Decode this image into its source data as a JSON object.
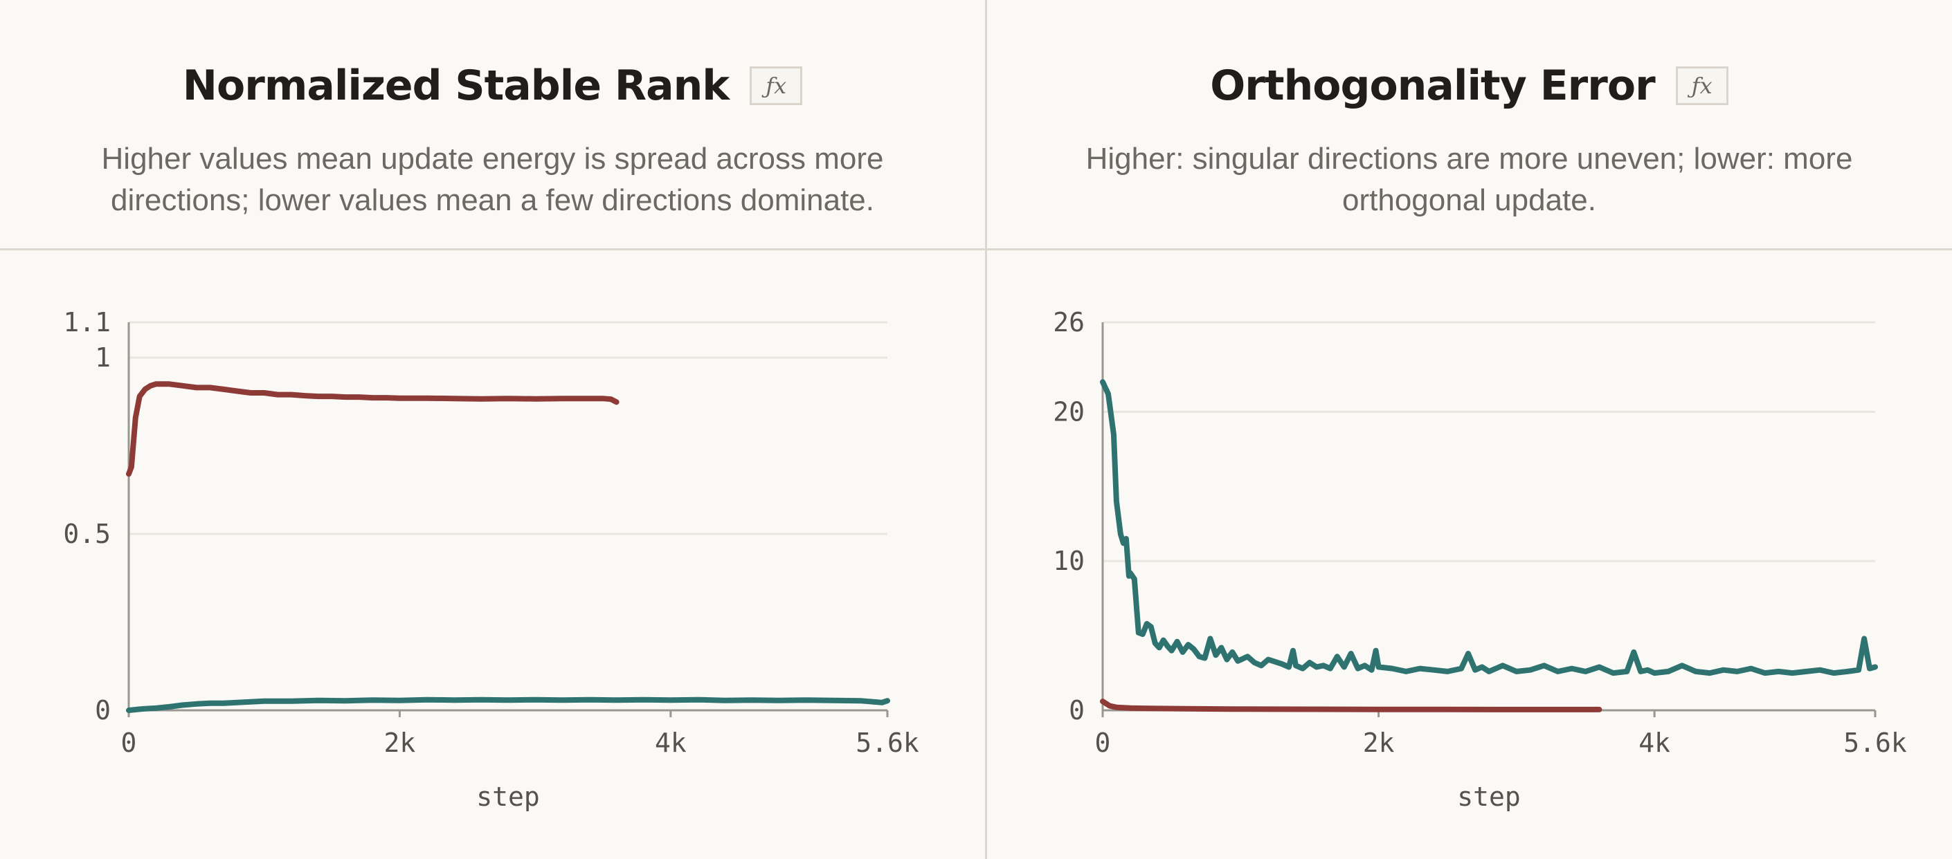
{
  "panels": [
    {
      "title": "Normalized Stable Rank",
      "fx_label": "ƒx",
      "subtitle": "Higher values mean update energy is spread across more directions; lower values mean a few directions dominate."
    },
    {
      "title": "Orthogonality Error",
      "fx_label": "ƒx",
      "subtitle": "Higher: singular directions are more uneven; lower: more orthogonal update."
    }
  ],
  "colors": {
    "series_red": "#8e3a36",
    "series_teal": "#2f7370",
    "grid": "#e9e6e0",
    "axis": "#9a9690"
  },
  "chart_data": [
    {
      "type": "line",
      "xlabel": "step",
      "xlim": [
        0,
        5600
      ],
      "ylim": [
        0,
        1.1
      ],
      "xticks": [
        {
          "v": 0,
          "label": "0"
        },
        {
          "v": 2000,
          "label": "2k"
        },
        {
          "v": 4000,
          "label": "4k"
        },
        {
          "v": 5600,
          "label": "5.6k"
        }
      ],
      "yticks": [
        {
          "v": 0,
          "label": "0"
        },
        {
          "v": 0.5,
          "label": "0.5"
        },
        {
          "v": 1,
          "label": "1"
        },
        {
          "v": 1.1,
          "label": "1.1"
        }
      ],
      "series": [
        {
          "color": "series_red",
          "x": [
            0,
            20,
            50,
            80,
            120,
            160,
            200,
            300,
            400,
            500,
            600,
            700,
            800,
            900,
            1000,
            1100,
            1200,
            1300,
            1400,
            1500,
            1600,
            1700,
            1800,
            1900,
            2000,
            2200,
            2400,
            2600,
            2800,
            3000,
            3200,
            3400,
            3500,
            3560,
            3600
          ],
          "y": [
            0.67,
            0.69,
            0.83,
            0.89,
            0.91,
            0.92,
            0.925,
            0.925,
            0.92,
            0.915,
            0.915,
            0.91,
            0.905,
            0.9,
            0.9,
            0.895,
            0.895,
            0.892,
            0.89,
            0.89,
            0.888,
            0.888,
            0.886,
            0.886,
            0.885,
            0.885,
            0.884,
            0.883,
            0.884,
            0.883,
            0.884,
            0.884,
            0.884,
            0.882,
            0.874
          ]
        },
        {
          "color": "series_teal",
          "x": [
            0,
            100,
            200,
            300,
            400,
            500,
            600,
            700,
            800,
            900,
            1000,
            1200,
            1400,
            1600,
            1800,
            2000,
            2200,
            2400,
            2600,
            2800,
            3000,
            3200,
            3400,
            3600,
            3800,
            4000,
            4200,
            4400,
            4600,
            4800,
            5000,
            5200,
            5400,
            5560,
            5600
          ],
          "y": [
            0.0,
            0.004,
            0.006,
            0.01,
            0.015,
            0.018,
            0.02,
            0.02,
            0.022,
            0.024,
            0.026,
            0.026,
            0.028,
            0.027,
            0.029,
            0.028,
            0.03,
            0.029,
            0.03,
            0.029,
            0.03,
            0.029,
            0.03,
            0.029,
            0.03,
            0.029,
            0.03,
            0.028,
            0.029,
            0.028,
            0.029,
            0.028,
            0.027,
            0.022,
            0.027
          ]
        }
      ]
    },
    {
      "type": "line",
      "xlabel": "step",
      "xlim": [
        0,
        5600
      ],
      "ylim": [
        0,
        26
      ],
      "xticks": [
        {
          "v": 0,
          "label": "0"
        },
        {
          "v": 2000,
          "label": "2k"
        },
        {
          "v": 4000,
          "label": "4k"
        },
        {
          "v": 5600,
          "label": "5.6k"
        }
      ],
      "yticks": [
        {
          "v": 0,
          "label": "0"
        },
        {
          "v": 10,
          "label": "10"
        },
        {
          "v": 20,
          "label": "20"
        },
        {
          "v": 26,
          "label": "26"
        }
      ],
      "series": [
        {
          "color": "series_teal",
          "x": [
            0,
            40,
            80,
            100,
            130,
            150,
            170,
            190,
            200,
            230,
            260,
            290,
            320,
            350,
            380,
            410,
            440,
            470,
            500,
            540,
            580,
            620,
            660,
            700,
            740,
            780,
            820,
            860,
            900,
            940,
            980,
            1050,
            1100,
            1150,
            1200,
            1300,
            1350,
            1380,
            1400,
            1450,
            1500,
            1550,
            1600,
            1650,
            1700,
            1750,
            1800,
            1850,
            1900,
            1950,
            1980,
            2000,
            2100,
            2200,
            2300,
            2400,
            2500,
            2600,
            2650,
            2700,
            2750,
            2800,
            2900,
            3000,
            3100,
            3200,
            3300,
            3400,
            3500,
            3600,
            3700,
            3800,
            3850,
            3900,
            3950,
            4000,
            4100,
            4200,
            4300,
            4400,
            4500,
            4600,
            4700,
            4800,
            4900,
            5000,
            5100,
            5200,
            5300,
            5400,
            5480,
            5520,
            5560,
            5600
          ],
          "y": [
            22.0,
            21.2,
            18.5,
            14.0,
            11.8,
            11.2,
            11.5,
            9.0,
            9.2,
            8.8,
            5.2,
            5.1,
            5.8,
            5.6,
            4.5,
            4.2,
            4.7,
            4.3,
            4.0,
            4.6,
            3.9,
            4.4,
            4.1,
            3.6,
            3.5,
            4.8,
            3.7,
            4.2,
            3.4,
            3.9,
            3.3,
            3.6,
            3.2,
            3.0,
            3.4,
            3.1,
            2.9,
            4.0,
            3.0,
            2.8,
            3.2,
            2.9,
            3.0,
            2.8,
            3.6,
            2.9,
            3.8,
            2.8,
            3.0,
            2.7,
            4.0,
            2.9,
            2.8,
            2.6,
            2.8,
            2.7,
            2.6,
            2.8,
            3.8,
            2.7,
            2.9,
            2.6,
            3.0,
            2.6,
            2.7,
            3.0,
            2.6,
            2.8,
            2.6,
            2.9,
            2.5,
            2.6,
            3.9,
            2.6,
            2.7,
            2.5,
            2.6,
            3.0,
            2.6,
            2.5,
            2.7,
            2.6,
            2.8,
            2.5,
            2.6,
            2.5,
            2.6,
            2.7,
            2.5,
            2.6,
            2.7,
            4.8,
            2.8,
            2.9
          ]
        },
        {
          "color": "series_red",
          "x": [
            0,
            50,
            100,
            200,
            400,
            600,
            1000,
            1500,
            2000,
            2500,
            3000,
            3600
          ],
          "y": [
            0.6,
            0.3,
            0.2,
            0.15,
            0.12,
            0.1,
            0.08,
            0.07,
            0.06,
            0.06,
            0.05,
            0.05
          ]
        }
      ]
    }
  ]
}
